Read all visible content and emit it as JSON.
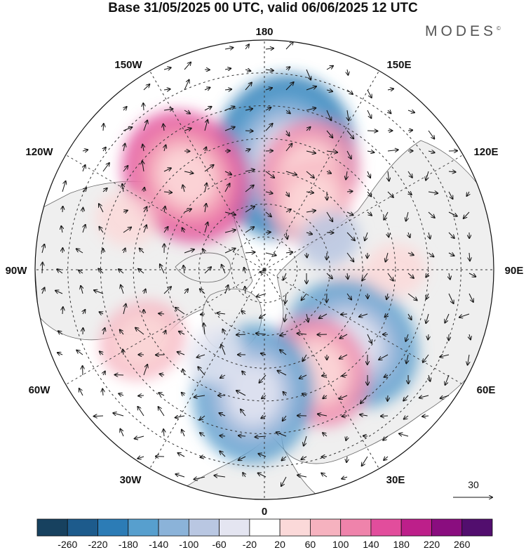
{
  "header": {
    "title": "Base 31/05/2025 00 UTC, valid 06/06/2025 12 UTC",
    "brand": "MODES",
    "brand_mark": "©"
  },
  "map": {
    "projection": "north-polar-stereographic",
    "longitude_labels": {
      "top": "180",
      "bottom": "0",
      "left": "90W",
      "right": "90E",
      "top_left": "150W",
      "top_right": "150E",
      "upper_left": "120W",
      "upper_right": "120E",
      "lower_left": "60W",
      "lower_right": "60E",
      "bottom_left": "30W",
      "bottom_right": "30E"
    },
    "reference_vector": "30",
    "colors": {
      "land": "#efefef",
      "ocean": "#ffffff",
      "coast": "#6a6a6a",
      "grid": "#333333"
    }
  },
  "colorbar": {
    "ticks": [
      "-260",
      "-220",
      "-180",
      "-140",
      "-100",
      "-60",
      "-20",
      "20",
      "60",
      "100",
      "140",
      "180",
      "220",
      "260"
    ],
    "colors": [
      "#17415f",
      "#1d5b8c",
      "#2c7cb6",
      "#579fce",
      "#8bb3d9",
      "#b9c7e2",
      "#e4e5f1",
      "#ffffff",
      "#fbd9d9",
      "#f6b2bf",
      "#ef83ab",
      "#e24d9c",
      "#bd1f8a",
      "#8a0d7f",
      "#520e6e"
    ]
  },
  "anomalies": [
    {
      "lon": 170,
      "lat": 55,
      "value": -200
    },
    {
      "lon": 155,
      "lat": 58,
      "value": 130
    },
    {
      "lon": 145,
      "lat": 65,
      "value": 90
    },
    {
      "lon": -140,
      "lat": 53,
      "value": 150
    },
    {
      "lon": -110,
      "lat": 45,
      "value": 50
    },
    {
      "lon": 115,
      "lat": 68,
      "value": -60
    },
    {
      "lon": 75,
      "lat": 62,
      "value": 60
    },
    {
      "lon": 50,
      "lat": 55,
      "value": -170
    },
    {
      "lon": 28,
      "lat": 55,
      "value": 110
    },
    {
      "lon": 90,
      "lat": 50,
      "value": 55
    },
    {
      "lon": -60,
      "lat": 47,
      "value": 90
    },
    {
      "lon": -5,
      "lat": 52,
      "value": -170
    },
    {
      "lon": -30,
      "lat": 60,
      "value": -40
    }
  ]
}
